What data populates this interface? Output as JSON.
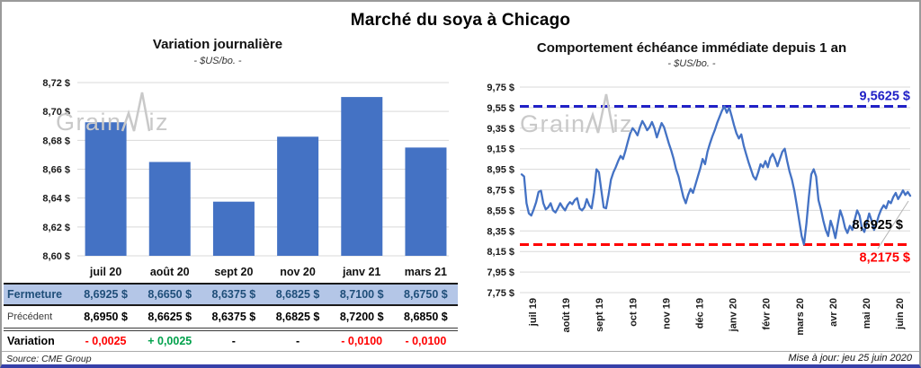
{
  "report": {
    "title": "Marché du soya à Chicago",
    "source": "Source: CME Group",
    "updated": "Mise à jour: jeu 25 juin 2020",
    "watermark": {
      "part1": "Grain",
      "part2": "iz"
    }
  },
  "colors": {
    "bar": "#4472c4",
    "line": "#4472c4",
    "grid": "#d9d9d9",
    "axis_text": "#1a1a1a",
    "high_line": "#2121c6",
    "low_line": "#ff0000",
    "last_label": "#000000",
    "leader": "#b5b5b5",
    "negative": "#ff0000",
    "positive": "#00a14b",
    "table_header_bg": "#b4c6e7",
    "table_header_text": "#1f4e79"
  },
  "chart_data": [
    {
      "type": "bar",
      "title": "Variation journalière",
      "subtitle": "- $US/bo. -",
      "categories": [
        "juil 20",
        "août 20",
        "sept 20",
        "nov 20",
        "janv 21",
        "mars 21"
      ],
      "values": [
        8.6925,
        8.665,
        8.6375,
        8.6825,
        8.71,
        8.675
      ],
      "ylim": [
        8.6,
        8.72
      ],
      "ytick_values": [
        8.72,
        8.7,
        8.68,
        8.66,
        8.64,
        8.62,
        8.6
      ],
      "ytick_labels": [
        "8,72 $",
        "8,70 $",
        "8,68 $",
        "8,66 $",
        "8,64 $",
        "8,62 $",
        "8,60 $"
      ],
      "grid": true
    },
    {
      "type": "line",
      "title": "Comportement échéance immédiate depuis 1 an",
      "subtitle": "- $US/bo. -",
      "x_labels": [
        "juil 19",
        "août 19",
        "sept 19",
        "oct 19",
        "nov 19",
        "déc 19",
        "janv 20",
        "févr 20",
        "mars 20",
        "avr 20",
        "mai 20",
        "juin 20"
      ],
      "ylim": [
        7.75,
        9.75
      ],
      "ytick_values": [
        9.75,
        9.55,
        9.35,
        9.15,
        8.95,
        8.75,
        8.55,
        8.35,
        8.15,
        7.95,
        7.75
      ],
      "ytick_labels": [
        "9,75 $",
        "9,55 $",
        "9,35 $",
        "9,15 $",
        "8,95 $",
        "8,75 $",
        "8,55 $",
        "8,35 $",
        "8,15 $",
        "7,95 $",
        "7,75 $"
      ],
      "grid": true,
      "values": [
        8.9,
        8.88,
        8.62,
        8.52,
        8.5,
        8.56,
        8.63,
        8.73,
        8.74,
        8.62,
        8.56,
        8.58,
        8.62,
        8.55,
        8.53,
        8.57,
        8.62,
        8.58,
        8.55,
        8.6,
        8.63,
        8.61,
        8.65,
        8.67,
        8.57,
        8.55,
        8.58,
        8.66,
        8.6,
        8.57,
        8.72,
        8.95,
        8.92,
        8.75,
        8.58,
        8.57,
        8.7,
        8.85,
        8.92,
        8.97,
        9.03,
        9.08,
        9.05,
        9.13,
        9.22,
        9.3,
        9.35,
        9.32,
        9.28,
        9.36,
        9.42,
        9.38,
        9.33,
        9.36,
        9.41,
        9.35,
        9.26,
        9.33,
        9.4,
        9.36,
        9.28,
        9.2,
        9.13,
        9.05,
        8.95,
        8.88,
        8.78,
        8.68,
        8.62,
        8.7,
        8.76,
        8.72,
        8.8,
        8.88,
        8.96,
        9.05,
        9.0,
        9.12,
        9.2,
        9.27,
        9.33,
        9.4,
        9.46,
        9.52,
        9.5625,
        9.5,
        9.55,
        9.47,
        9.38,
        9.3,
        9.25,
        9.29,
        9.18,
        9.1,
        9.02,
        8.95,
        8.88,
        8.85,
        8.92,
        9.0,
        8.97,
        9.03,
        8.97,
        9.06,
        9.1,
        9.05,
        8.98,
        9.05,
        9.12,
        9.15,
        9.03,
        8.93,
        8.85,
        8.74,
        8.6,
        8.45,
        8.3,
        8.2175,
        8.42,
        8.68,
        8.9,
        8.95,
        8.88,
        8.65,
        8.56,
        8.45,
        8.36,
        8.3,
        8.45,
        8.38,
        8.28,
        8.42,
        8.55,
        8.48,
        8.38,
        8.33,
        8.4,
        8.36,
        8.46,
        8.55,
        8.5,
        8.38,
        8.34,
        8.43,
        8.52,
        8.45,
        8.36,
        8.42,
        8.5,
        8.56,
        8.6,
        8.57,
        8.64,
        8.62,
        8.68,
        8.72,
        8.66,
        8.7,
        8.745,
        8.7,
        8.73,
        8.6925
      ],
      "annotations": {
        "high": {
          "value": 9.5625,
          "label": "9,5625 $"
        },
        "low": {
          "value": 8.2175,
          "label": "8,2175 $"
        },
        "last": {
          "value": 8.6925,
          "label": "8,6925 $"
        }
      }
    }
  ],
  "table": {
    "columns": [
      "juil 20",
      "août 20",
      "sept 20",
      "nov 20",
      "janv 21",
      "mars 21"
    ],
    "rows": [
      {
        "key": "fermeture",
        "label": "Fermeture",
        "values": [
          "8,6925 $",
          "8,6650 $",
          "8,6375 $",
          "8,6825 $",
          "8,7100 $",
          "8,6750 $"
        ]
      },
      {
        "key": "precedent",
        "label": "Précédent",
        "values": [
          "8,6950 $",
          "8,6625 $",
          "8,6375 $",
          "8,6825 $",
          "8,7200 $",
          "8,6850 $"
        ]
      },
      {
        "key": "variation",
        "label": "Variation",
        "values": [
          "- 0,0025",
          "+ 0,0025",
          "-",
          "-",
          "- 0,0100",
          "- 0,0100"
        ],
        "value_colors": [
          "#ff0000",
          "#00a14b",
          "#000000",
          "#000000",
          "#ff0000",
          "#ff0000"
        ]
      }
    ]
  }
}
